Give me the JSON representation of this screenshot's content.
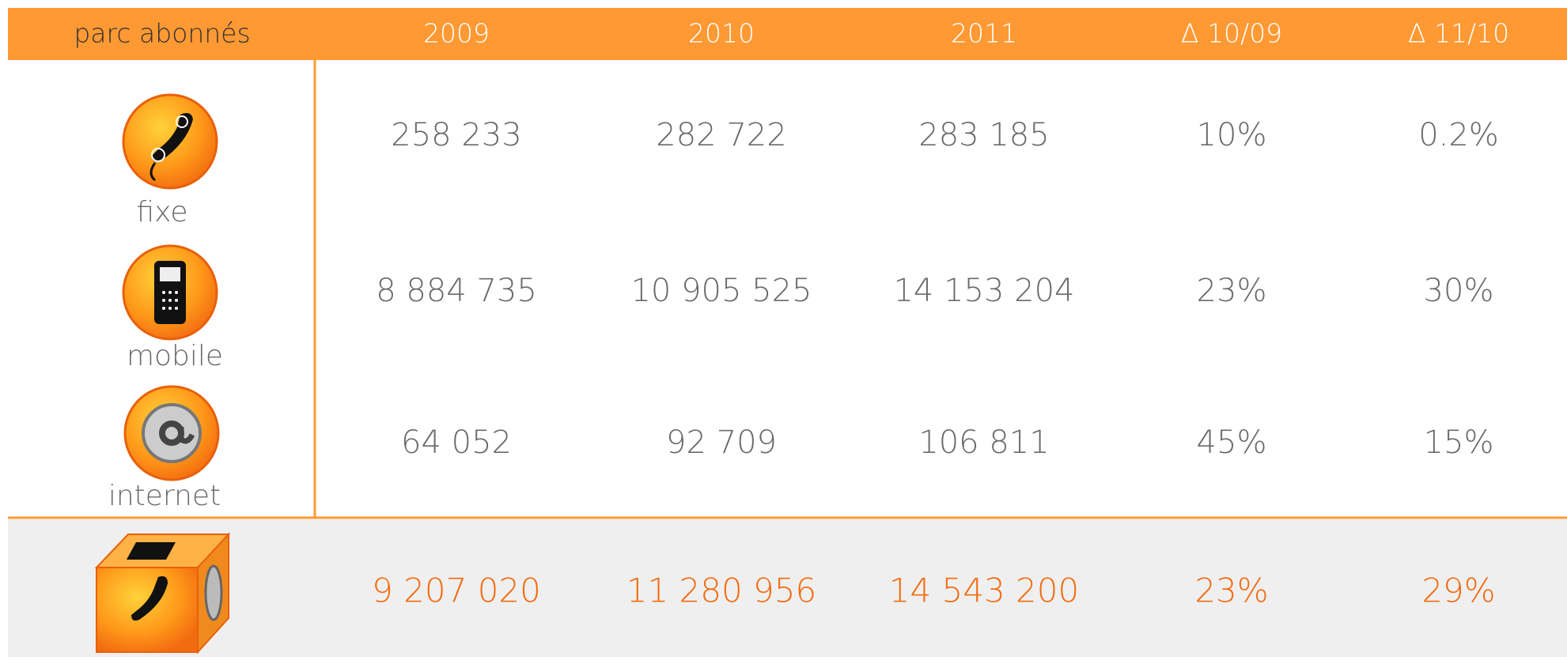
{
  "table": {
    "header": [
      "parc abonnés",
      "2009",
      "2010",
      "2011",
      "Δ 10/09",
      "Δ 11/10"
    ],
    "rows": [
      {
        "label": "fixe",
        "values": [
          "258 233",
          "282 722",
          "283 185",
          "10%",
          "0.2%"
        ]
      },
      {
        "label": "mobile",
        "values": [
          "8 884 735",
          "10 905 525",
          "14 153 204",
          "23%",
          "30%"
        ]
      },
      {
        "label": "internet",
        "values": [
          "64 052",
          "92 709",
          "106 811",
          "45%",
          "15%"
        ]
      }
    ],
    "total": {
      "values": [
        "9 207 020",
        "11 280 956",
        "14 543 200",
        "23%",
        "29%"
      ]
    }
  }
}
